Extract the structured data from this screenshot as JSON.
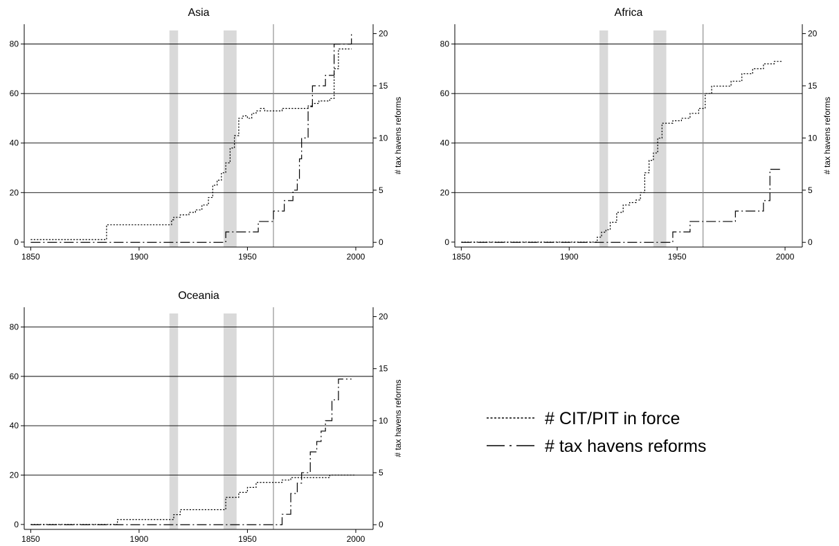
{
  "chart_data": [
    {
      "type": "line",
      "title": "Asia",
      "x_ticks": [
        1850,
        1900,
        1950,
        2000
      ],
      "xlim": [
        1847,
        2008
      ],
      "y_left": {
        "ticks": [
          0,
          20,
          40,
          60,
          80
        ],
        "lim": [
          -2,
          88
        ]
      },
      "y_right": {
        "label": "# tax havens reforms",
        "ticks": [
          0,
          5,
          10,
          15,
          20
        ],
        "lim": [
          -0.45,
          20.9
        ]
      },
      "shaded_periods": [
        [
          1914,
          1918
        ],
        [
          1939,
          1945
        ]
      ],
      "vertical_line_x": 1962,
      "series": [
        {
          "name": "# CIT/PIT in force",
          "axis": "left",
          "style": "dotted",
          "points": [
            [
              1850,
              1
            ],
            [
              1884,
              1
            ],
            [
              1885,
              7
            ],
            [
              1914,
              7
            ],
            [
              1915,
              9
            ],
            [
              1916,
              10
            ],
            [
              1919,
              11
            ],
            [
              1923,
              12
            ],
            [
              1926,
              13
            ],
            [
              1929,
              15
            ],
            [
              1932,
              18
            ],
            [
              1934,
              23
            ],
            [
              1936,
              25
            ],
            [
              1938,
              28
            ],
            [
              1940,
              32
            ],
            [
              1942,
              38
            ],
            [
              1944,
              43
            ],
            [
              1946,
              50
            ],
            [
              1948,
              51
            ],
            [
              1950,
              50
            ],
            [
              1952,
              52
            ],
            [
              1954,
              53
            ],
            [
              1956,
              54
            ],
            [
              1958,
              53
            ],
            [
              1960,
              53
            ],
            [
              1966,
              54
            ],
            [
              1976,
              54
            ],
            [
              1978,
              55
            ],
            [
              1980,
              56
            ],
            [
              1983,
              57
            ],
            [
              1988,
              58
            ],
            [
              1990,
              70
            ],
            [
              1992,
              78
            ],
            [
              1998,
              78
            ]
          ]
        },
        {
          "name": "# tax havens reforms",
          "axis": "right",
          "style": "dashdot",
          "points": [
            [
              1850,
              0
            ],
            [
              1939,
              0
            ],
            [
              1940,
              1
            ],
            [
              1954,
              1
            ],
            [
              1955,
              2
            ],
            [
              1961,
              2
            ],
            [
              1962,
              3
            ],
            [
              1966,
              3
            ],
            [
              1967,
              4
            ],
            [
              1970,
              4
            ],
            [
              1971,
              5
            ],
            [
              1973,
              6
            ],
            [
              1974,
              8
            ],
            [
              1975,
              10
            ],
            [
              1978,
              13
            ],
            [
              1980,
              15
            ],
            [
              1985,
              15
            ],
            [
              1986,
              16
            ],
            [
              1990,
              19
            ],
            [
              1996,
              19
            ],
            [
              1998,
              20
            ]
          ]
        }
      ]
    },
    {
      "type": "line",
      "title": "Africa",
      "x_ticks": [
        1850,
        1900,
        1950,
        2000
      ],
      "xlim": [
        1847,
        2008
      ],
      "y_left": {
        "ticks": [
          0,
          20,
          40,
          60,
          80
        ],
        "lim": [
          -2,
          88
        ]
      },
      "y_right": {
        "label": "# tax havens reforms",
        "ticks": [
          0,
          5,
          10,
          15,
          20
        ],
        "lim": [
          -0.45,
          20.9
        ]
      },
      "shaded_periods": [
        [
          1914,
          1918
        ],
        [
          1939,
          1945
        ]
      ],
      "vertical_line_x": 1962,
      "series": [
        {
          "name": "# CIT/PIT in force",
          "axis": "left",
          "style": "dotted",
          "points": [
            [
              1850,
              0
            ],
            [
              1911,
              0
            ],
            [
              1913,
              2
            ],
            [
              1915,
              4
            ],
            [
              1917,
              5
            ],
            [
              1919,
              8
            ],
            [
              1922,
              12
            ],
            [
              1925,
              15
            ],
            [
              1928,
              16
            ],
            [
              1931,
              17
            ],
            [
              1933,
              20
            ],
            [
              1935,
              28
            ],
            [
              1937,
              33
            ],
            [
              1939,
              36
            ],
            [
              1941,
              42
            ],
            [
              1943,
              48
            ],
            [
              1945,
              48
            ],
            [
              1948,
              49
            ],
            [
              1952,
              50
            ],
            [
              1956,
              52
            ],
            [
              1960,
              54
            ],
            [
              1963,
              60
            ],
            [
              1966,
              63
            ],
            [
              1970,
              63
            ],
            [
              1975,
              65
            ],
            [
              1980,
              68
            ],
            [
              1985,
              70
            ],
            [
              1990,
              72
            ],
            [
              1995,
              73
            ],
            [
              1999,
              73
            ]
          ]
        },
        {
          "name": "# tax havens reforms",
          "axis": "right",
          "style": "dashdot",
          "points": [
            [
              1850,
              0
            ],
            [
              1947,
              0
            ],
            [
              1948,
              1
            ],
            [
              1954,
              1
            ],
            [
              1956,
              2
            ],
            [
              1975,
              2
            ],
            [
              1977,
              3
            ],
            [
              1987,
              3
            ],
            [
              1990,
              4
            ],
            [
              1993,
              7
            ],
            [
              1998,
              7
            ]
          ]
        }
      ]
    },
    {
      "type": "line",
      "title": "Oceania",
      "x_ticks": [
        1850,
        1900,
        1950,
        2000
      ],
      "xlim": [
        1847,
        2008
      ],
      "y_left": {
        "ticks": [
          0,
          20,
          40,
          60,
          80
        ],
        "lim": [
          -2,
          88
        ]
      },
      "y_right": {
        "label": "# tax havens reforms",
        "ticks": [
          0,
          5,
          10,
          15,
          20
        ],
        "lim": [
          -0.45,
          20.9
        ]
      },
      "shaded_periods": [
        [
          1914,
          1918
        ],
        [
          1939,
          1945
        ]
      ],
      "vertical_line_x": 1962,
      "series": [
        {
          "name": "# CIT/PIT in force",
          "axis": "left",
          "style": "dotted",
          "points": [
            [
              1850,
              0
            ],
            [
              1889,
              0
            ],
            [
              1890,
              2
            ],
            [
              1914,
              2
            ],
            [
              1916,
              4
            ],
            [
              1919,
              6
            ],
            [
              1938,
              6
            ],
            [
              1940,
              11
            ],
            [
              1944,
              11
            ],
            [
              1946,
              13
            ],
            [
              1950,
              15
            ],
            [
              1954,
              17
            ],
            [
              1962,
              17
            ],
            [
              1966,
              18
            ],
            [
              1970,
              19
            ],
            [
              1986,
              19
            ],
            [
              1988,
              20
            ],
            [
              2000,
              20
            ]
          ]
        },
        {
          "name": "# tax havens reforms",
          "axis": "right",
          "style": "dashdot",
          "points": [
            [
              1850,
              0
            ],
            [
              1963,
              0
            ],
            [
              1966,
              1
            ],
            [
              1970,
              3
            ],
            [
              1973,
              4
            ],
            [
              1975,
              5
            ],
            [
              1979,
              7
            ],
            [
              1982,
              8
            ],
            [
              1984,
              9
            ],
            [
              1986,
              10
            ],
            [
              1989,
              12
            ],
            [
              1992,
              14
            ],
            [
              1995,
              14
            ],
            [
              1998,
              14
            ]
          ]
        }
      ]
    }
  ],
  "legend": {
    "items": [
      {
        "label": "# CIT/PIT in force",
        "style": "dotted"
      },
      {
        "label": "# tax havens reforms",
        "style": "dashdot"
      }
    ]
  }
}
